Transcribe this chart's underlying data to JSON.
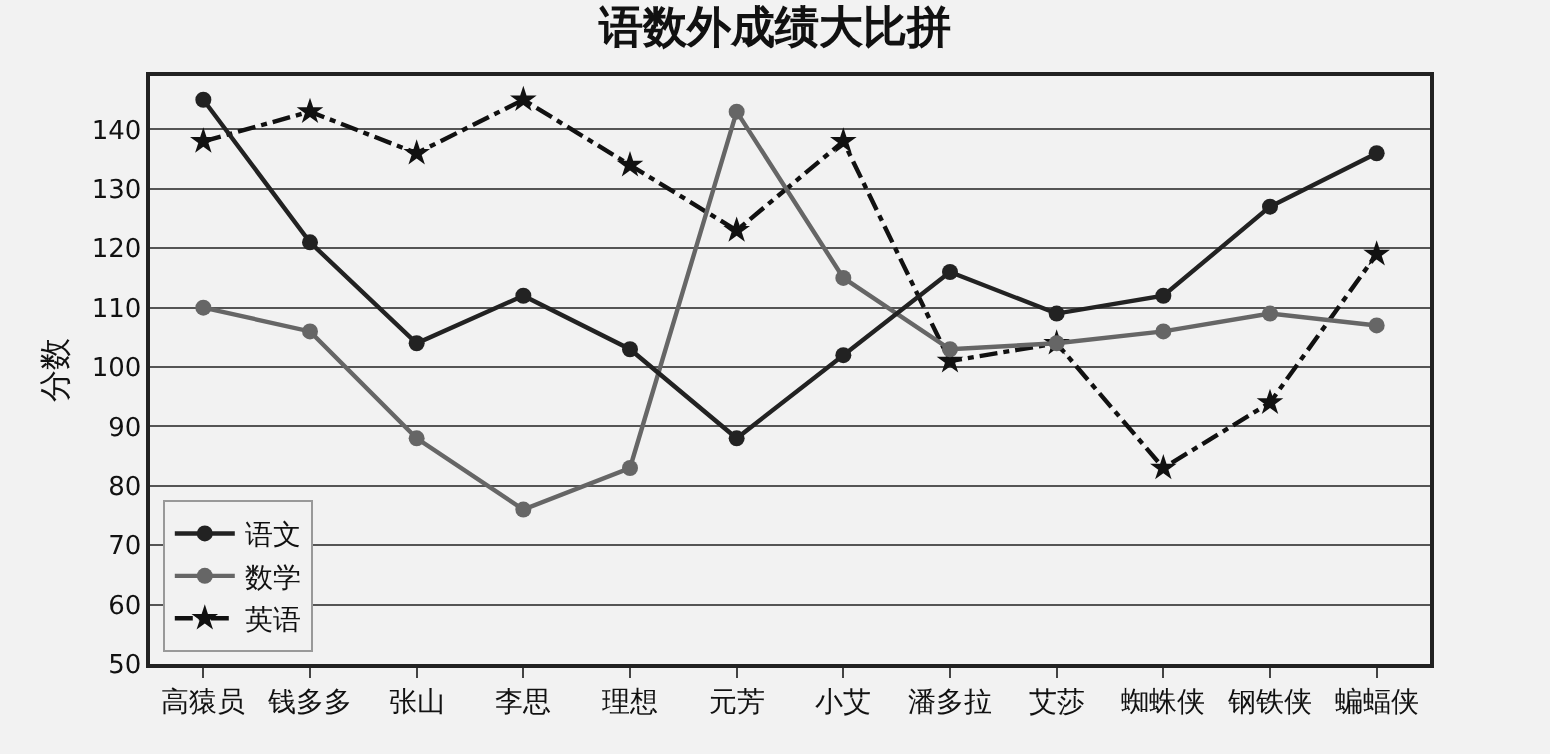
{
  "chart_data": {
    "type": "line",
    "title": "语数外成绩大比拼",
    "ylabel": "分数",
    "categories": [
      "高猿员",
      "钱多多",
      "张山",
      "李思",
      "理想",
      "元芳",
      "小艾",
      "潘多拉",
      "艾莎",
      "蜘蛛侠",
      "钢铁侠",
      "蝙蝠侠"
    ],
    "series": [
      {
        "name": "语文",
        "color": "#222222",
        "marker": "circle",
        "line_style": "solid",
        "values": [
          145,
          121,
          104,
          112,
          103,
          88,
          102,
          116,
          109,
          112,
          127,
          136
        ]
      },
      {
        "name": "数学",
        "color": "#666666",
        "marker": "circle",
        "line_style": "solid",
        "values": [
          110,
          106,
          88,
          76,
          83,
          143,
          115,
          103,
          104,
          106,
          109,
          107
        ]
      },
      {
        "name": "英语",
        "color": "#111111",
        "marker": "star",
        "line_style": "dashed",
        "values": [
          138,
          143,
          136,
          145,
          134,
          123,
          138,
          101,
          104,
          83,
          94,
          119
        ]
      }
    ],
    "ylim": [
      50,
      149
    ],
    "yticks": [
      50,
      60,
      70,
      80,
      90,
      100,
      110,
      120,
      130,
      140
    ],
    "grid": "y",
    "legend": "bottom left"
  }
}
